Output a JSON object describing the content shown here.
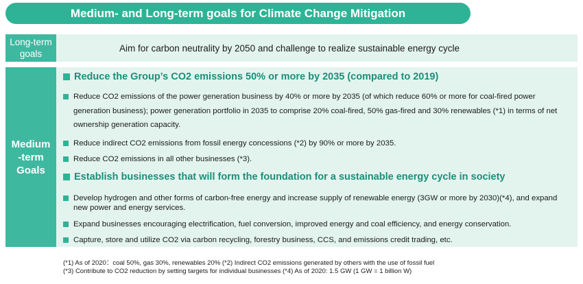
{
  "title": "Medium- and Long-term goals for Climate Change Mitigation",
  "long_term": {
    "label": "Long-term goals",
    "text": "Aim for carbon neutrality by 2050 and challenge to realize sustainable energy cycle"
  },
  "medium_term": {
    "label": "Medium\n-term\nGoals",
    "section1": {
      "heading": "Reduce the Group’s CO2 emissions 50% or more by 2035 (compared to 2019)",
      "items": [
        "Reduce CO2 emissions of the power generation business by 40% or more by 2035 (of which reduce 60% or more for coal-fired power generation business); power generation portfolio in 2035 to comprise 20% coal-fired, 50% gas-fired and 30% renewables (*1) in terms of net ownership generation capacity.",
        "Reduce indirect CO2 emissions from fossil energy concessions (*2) by 90% or more by 2035.",
        "Reduce CO2 emissions in all other businesses (*3)."
      ]
    },
    "section2": {
      "heading": "Establish businesses that will form the foundation for a sustainable energy cycle in society",
      "items": [
        "Develop hydrogen and other forms of carbon-free energy and increase supply of renewable energy (3GW or more by 2030)(*4), and expand new power and energy services.",
        "Expand businesses encouraging electrification, fuel conversion, improved energy and coal efficiency, and energy conservation.",
        "Capture, store and utilize CO2 via carbon recycling, forestry business, CCS, and emissions credit trading, etc."
      ]
    }
  },
  "notes": {
    "line1": "(*1) As of 2020：coal 50%, gas 30%, renewables 20%  (*2) Indirect CO2 emissions generated by others with the use of fossil fuel",
    "line2": "(*3) Contribute to CO2 reduction by setting targets for individual businesses (*4) As of 2020: 1.5 GW (1 GW = 1 billion W)"
  },
  "colors": {
    "accent": "#2eb396",
    "label_bg": "#3fb8a0",
    "panel_bg": "#e3f4ef",
    "heading_text": "#1a8f78"
  }
}
